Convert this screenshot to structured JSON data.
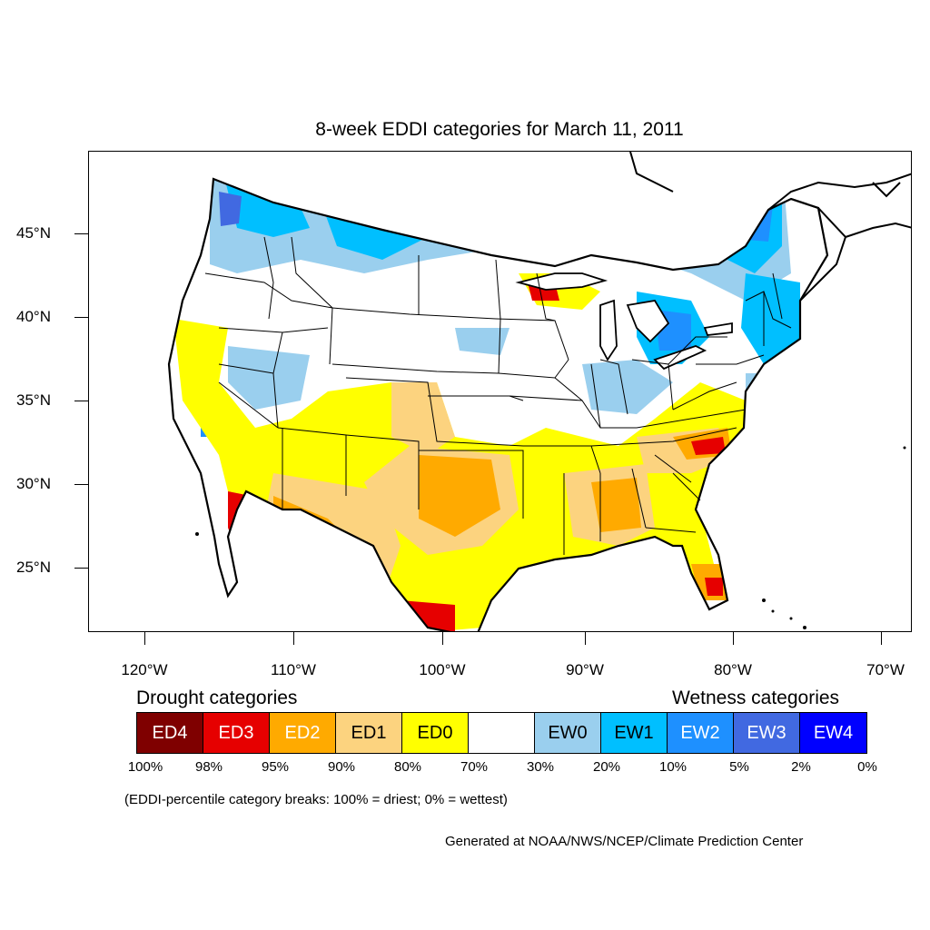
{
  "title": "8-week EDDI categories for March 11, 2011",
  "lat_labels": [
    "45°N",
    "40°N",
    "35°N",
    "30°N",
    "25°N"
  ],
  "lon_labels": [
    "120°W",
    "110°W",
    "100°W",
    "90°W",
    "80°W",
    "70°W"
  ],
  "drought_heading": "Drought categories",
  "wetness_heading": "Wetness categories",
  "legend": [
    {
      "label": "ED4",
      "color": "#7f0000",
      "text_color": "#ffffff"
    },
    {
      "label": "ED3",
      "color": "#e60000",
      "text_color": "#ffffff"
    },
    {
      "label": "ED2",
      "color": "#ffaa00",
      "text_color": "#ffffff"
    },
    {
      "label": "ED1",
      "color": "#fcd37f",
      "text_color": "#000000"
    },
    {
      "label": "ED0",
      "color": "#ffff00",
      "text_color": "#000000"
    },
    {
      "label": "",
      "color": "#ffffff",
      "text_color": "#000000"
    },
    {
      "label": "EW0",
      "color": "#9acfee",
      "text_color": "#000000"
    },
    {
      "label": "EW1",
      "color": "#00bfff",
      "text_color": "#000000"
    },
    {
      "label": "EW2",
      "color": "#1e90ff",
      "text_color": "#ffffff"
    },
    {
      "label": "EW3",
      "color": "#4169e1",
      "text_color": "#ffffff"
    },
    {
      "label": "EW4",
      "color": "#0000ff",
      "text_color": "#ffffff"
    }
  ],
  "percent_labels": [
    "100%",
    "98%",
    "95%",
    "90%",
    "80%",
    "70%",
    "30%",
    "20%",
    "10%",
    "5%",
    "2%",
    "0%"
  ],
  "note": "(EDDI-percentile category breaks: 100% = driest; 0% = wettest)",
  "credit": "Generated at NOAA/NWS/NCEP/Climate Prediction Center"
}
